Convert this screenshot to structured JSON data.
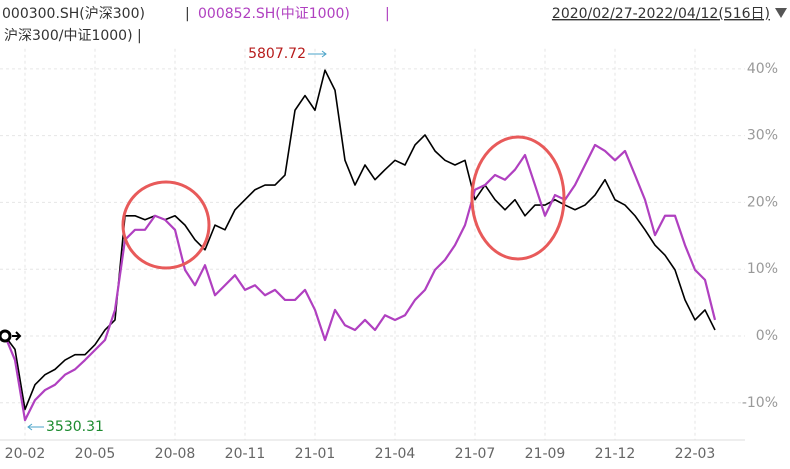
{
  "chart_data": {
    "type": "line",
    "header_line2": "沪深300/中证1000) |",
    "legend_separator": "|",
    "date_range": "2020/02/27-2022/04/12(516日)",
    "annotations": [
      {
        "text": "5807.72",
        "color": "#b71c1c"
      },
      {
        "text": "3530.31",
        "color": "#1b8a2e"
      }
    ],
    "categories": [
      null,
      null,
      "20-02",
      null,
      null,
      null,
      null,
      null,
      null,
      "20-05",
      null,
      null,
      null,
      null,
      null,
      null,
      null,
      "20-08",
      null,
      null,
      null,
      null,
      null,
      null,
      "20-11",
      null,
      null,
      null,
      null,
      null,
      null,
      "21-01",
      null,
      null,
      null,
      null,
      null,
      null,
      null,
      "21-04",
      null,
      null,
      null,
      null,
      null,
      null,
      null,
      "21-07",
      null,
      null,
      null,
      null,
      null,
      null,
      "21-09",
      null,
      null,
      null,
      null,
      null,
      null,
      "21-12",
      null,
      null,
      null,
      null,
      null,
      null,
      null,
      "22-03",
      null,
      null
    ],
    "series": [
      {
        "name": "000300.SH(沪深300)",
        "color": "#000000",
        "values": [
          0,
          -2,
          -11,
          -7.3,
          -5.8,
          -5,
          -3.6,
          -2.8,
          -2.8,
          -1.3,
          0.9,
          2.4,
          18,
          18,
          17.4,
          18,
          17.4,
          18,
          16.6,
          14.4,
          12.9,
          16.6,
          15.9,
          18.9,
          20.4,
          21.9,
          22.6,
          22.6,
          24.1,
          33.8,
          36,
          33.8,
          39.8,
          36.8,
          26.3,
          22.6,
          25.6,
          23.4,
          24.9,
          26.3,
          25.6,
          28.6,
          30.1,
          27.7,
          26.3,
          25.6,
          26.3,
          20.4,
          22.6,
          20.4,
          18.9,
          20.4,
          18,
          19.6,
          19.6,
          20.4,
          19.6,
          18.9,
          19.6,
          21.1,
          23.4,
          20.4,
          19.6,
          18,
          15.9,
          13.6,
          12.1,
          9.9,
          5.4,
          2.4,
          3.9,
          0.9
        ]
      },
      {
        "name": "000852.SH(中证1000)",
        "color": "#b040c0",
        "values": [
          0,
          -3.6,
          -12.6,
          -9.6,
          -8.1,
          -7.3,
          -5.8,
          -5,
          -3.6,
          -2.1,
          -0.6,
          3.9,
          14.4,
          15.9,
          15.9,
          18,
          17.4,
          15.9,
          9.9,
          7.6,
          10.6,
          6.1,
          7.6,
          9.1,
          6.9,
          7.6,
          6.1,
          6.9,
          5.4,
          5.4,
          6.9,
          3.9,
          -0.6,
          3.9,
          1.6,
          0.9,
          2.4,
          0.9,
          3.1,
          2.4,
          3.1,
          5.4,
          6.9,
          9.9,
          11.4,
          13.6,
          16.6,
          21.9,
          22.6,
          24.1,
          23.4,
          24.9,
          27.1,
          22.6,
          18,
          21.1,
          20.4,
          22.6,
          25.6,
          28.6,
          27.7,
          26.3,
          27.7,
          24.1,
          20.4,
          15.1,
          18,
          18,
          13.6,
          9.9,
          8.4,
          2.4
        ]
      }
    ],
    "ylim": [
      -15.5,
      43
    ],
    "yticks": [
      {
        "value": -10,
        "label": "-10%"
      },
      {
        "value": 0,
        "label": "0%"
      },
      {
        "value": 10,
        "label": "10%"
      },
      {
        "value": 20,
        "label": "20%"
      },
      {
        "value": 30,
        "label": "30%"
      },
      {
        "value": 40,
        "label": "40%"
      }
    ],
    "grid": true
  }
}
